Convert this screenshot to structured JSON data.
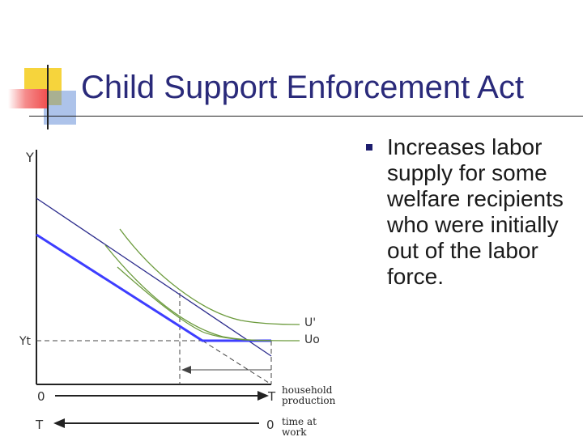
{
  "slide": {
    "title": "Child Support Enforcement Act",
    "bullets": [
      "Increases labor supply for some welfare recipients who were initially out of the labor force."
    ]
  },
  "diagram": {
    "labels": {
      "y_axis": "Y",
      "yt": "Yt",
      "origin_top": "0",
      "t_top": "T",
      "t_bottom": "T",
      "origin_bottom": "0",
      "u_prime": "U'",
      "u_zero": "Uo",
      "household_line1": "household",
      "household_line2": "production",
      "time_line1": "time at",
      "time_line2": "work"
    },
    "colors": {
      "budget_line": "#2b2b8c",
      "budget_line_bold": "#3d3dff",
      "indifference": "#6b9a3c",
      "axes": "#222222",
      "dashed": "#444444"
    }
  },
  "decor": {
    "square_yellow": "#f6d43c",
    "square_red": "#f05a5a",
    "square_blue": "#4a78c8"
  }
}
